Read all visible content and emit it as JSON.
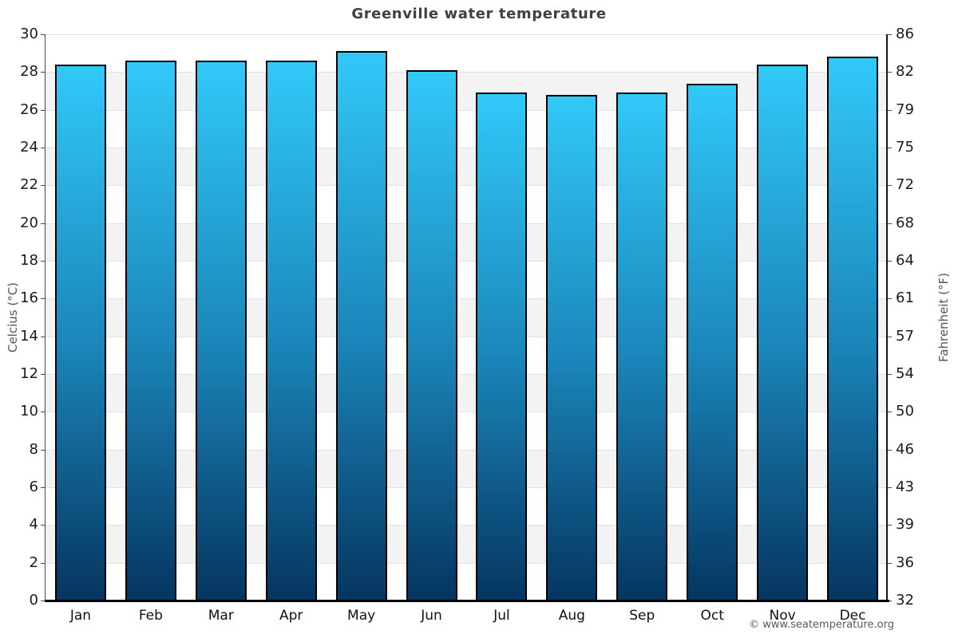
{
  "page": {
    "footer": "© www.seatemperature.org"
  },
  "chart_data": {
    "type": "bar",
    "title": "Greenville water temperature",
    "categories": [
      "Jan",
      "Feb",
      "Mar",
      "Apr",
      "May",
      "Jun",
      "Jul",
      "Aug",
      "Sep",
      "Oct",
      "Nov",
      "Dec"
    ],
    "values": [
      28.4,
      28.6,
      28.6,
      28.6,
      29.1,
      28.1,
      26.9,
      26.8,
      26.9,
      27.4,
      28.4,
      28.8
    ],
    "unit": "°C",
    "ylabel_left": "Celcius (°C)",
    "ylabel_right": "Fahrenheit (°F)",
    "ylim": [
      0,
      30
    ],
    "ytick_step": 2,
    "left_ticks": [
      0,
      2,
      4,
      6,
      8,
      10,
      12,
      14,
      16,
      18,
      20,
      22,
      24,
      26,
      28,
      30
    ],
    "right_ticks": [
      "32",
      "36",
      "39",
      "43",
      "46",
      "50",
      "54",
      "57",
      "61",
      "64",
      "68",
      "72",
      "75",
      "79",
      "82",
      "86"
    ],
    "grid": "alternating-horizontal-bands",
    "legend": "none",
    "colors": {
      "bar_top": "#31c9f8",
      "bar_mid": "#1b86ba",
      "bar_bottom": "#053560",
      "bar_border": "#000000",
      "band_gray": "#f3f3f3",
      "gridline": "#e2e2e2",
      "left_axis": "#4a4a4a",
      "right_axis": "#161616",
      "bottom_axis": "#000000",
      "title_text": "#404040",
      "tick_text": "#1c1c1c",
      "axis_title_text": "#555555",
      "footer_text": "#5a5a5a"
    }
  }
}
